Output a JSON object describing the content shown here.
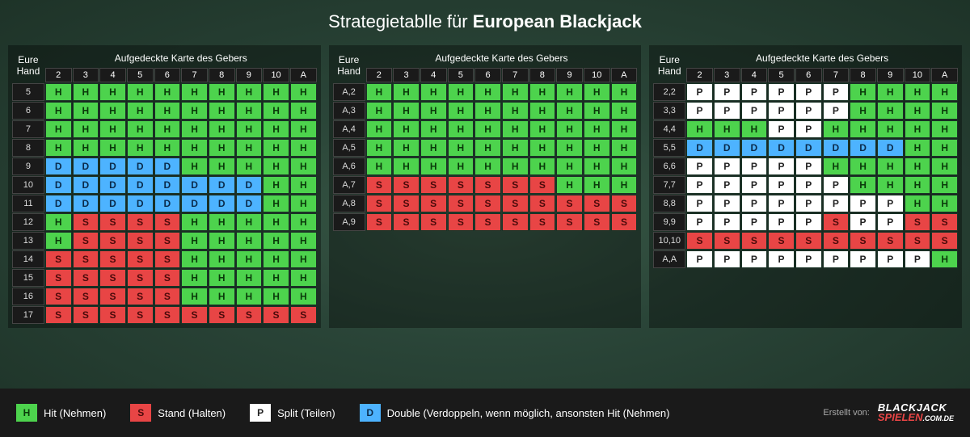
{
  "title_prefix": "Strategietablle für ",
  "title_bold": "European Blackjack",
  "hand_header_line1": "Eure",
  "hand_header_line2": "Hand",
  "dealer_header": "Aufgedeckte Karte des Gebers",
  "dealer_cols": [
    "2",
    "3",
    "4",
    "5",
    "6",
    "7",
    "8",
    "9",
    "10",
    "A"
  ],
  "colors": {
    "H": "#4dd34d",
    "S": "#e84545",
    "P": "#ffffff",
    "D": "#4db3ff",
    "panel_bg": "rgba(0,0,0,0.35)",
    "footer_bg": "#1a1a1a",
    "page_bg_center": "#3a5a47",
    "page_bg_edge": "#1e3328"
  },
  "tables": [
    {
      "rows": [
        {
          "hand": "5",
          "a": [
            "H",
            "H",
            "H",
            "H",
            "H",
            "H",
            "H",
            "H",
            "H",
            "H"
          ]
        },
        {
          "hand": "6",
          "a": [
            "H",
            "H",
            "H",
            "H",
            "H",
            "H",
            "H",
            "H",
            "H",
            "H"
          ]
        },
        {
          "hand": "7",
          "a": [
            "H",
            "H",
            "H",
            "H",
            "H",
            "H",
            "H",
            "H",
            "H",
            "H"
          ]
        },
        {
          "hand": "8",
          "a": [
            "H",
            "H",
            "H",
            "H",
            "H",
            "H",
            "H",
            "H",
            "H",
            "H"
          ]
        },
        {
          "hand": "9",
          "a": [
            "D",
            "D",
            "D",
            "D",
            "D",
            "H",
            "H",
            "H",
            "H",
            "H"
          ]
        },
        {
          "hand": "10",
          "a": [
            "D",
            "D",
            "D",
            "D",
            "D",
            "D",
            "D",
            "D",
            "H",
            "H"
          ]
        },
        {
          "hand": "11",
          "a": [
            "D",
            "D",
            "D",
            "D",
            "D",
            "D",
            "D",
            "D",
            "H",
            "H"
          ]
        },
        {
          "hand": "12",
          "a": [
            "H",
            "S",
            "S",
            "S",
            "S",
            "H",
            "H",
            "H",
            "H",
            "H"
          ]
        },
        {
          "hand": "13",
          "a": [
            "H",
            "S",
            "S",
            "S",
            "S",
            "H",
            "H",
            "H",
            "H",
            "H"
          ]
        },
        {
          "hand": "14",
          "a": [
            "S",
            "S",
            "S",
            "S",
            "S",
            "H",
            "H",
            "H",
            "H",
            "H"
          ]
        },
        {
          "hand": "15",
          "a": [
            "S",
            "S",
            "S",
            "S",
            "S",
            "H",
            "H",
            "H",
            "H",
            "H"
          ]
        },
        {
          "hand": "16",
          "a": [
            "S",
            "S",
            "S",
            "S",
            "S",
            "H",
            "H",
            "H",
            "H",
            "H"
          ]
        },
        {
          "hand": "17",
          "a": [
            "S",
            "S",
            "S",
            "S",
            "S",
            "S",
            "S",
            "S",
            "S",
            "S"
          ]
        }
      ]
    },
    {
      "rows": [
        {
          "hand": "A,2",
          "a": [
            "H",
            "H",
            "H",
            "H",
            "H",
            "H",
            "H",
            "H",
            "H",
            "H"
          ]
        },
        {
          "hand": "A,3",
          "a": [
            "H",
            "H",
            "H",
            "H",
            "H",
            "H",
            "H",
            "H",
            "H",
            "H"
          ]
        },
        {
          "hand": "A,4",
          "a": [
            "H",
            "H",
            "H",
            "H",
            "H",
            "H",
            "H",
            "H",
            "H",
            "H"
          ]
        },
        {
          "hand": "A,5",
          "a": [
            "H",
            "H",
            "H",
            "H",
            "H",
            "H",
            "H",
            "H",
            "H",
            "H"
          ]
        },
        {
          "hand": "A,6",
          "a": [
            "H",
            "H",
            "H",
            "H",
            "H",
            "H",
            "H",
            "H",
            "H",
            "H"
          ]
        },
        {
          "hand": "A,7",
          "a": [
            "S",
            "S",
            "S",
            "S",
            "S",
            "S",
            "S",
            "H",
            "H",
            "H"
          ]
        },
        {
          "hand": "A,8",
          "a": [
            "S",
            "S",
            "S",
            "S",
            "S",
            "S",
            "S",
            "S",
            "S",
            "S"
          ]
        },
        {
          "hand": "A,9",
          "a": [
            "S",
            "S",
            "S",
            "S",
            "S",
            "S",
            "S",
            "S",
            "S",
            "S"
          ]
        }
      ]
    },
    {
      "rows": [
        {
          "hand": "2,2",
          "a": [
            "P",
            "P",
            "P",
            "P",
            "P",
            "P",
            "H",
            "H",
            "H",
            "H"
          ]
        },
        {
          "hand": "3,3",
          "a": [
            "P",
            "P",
            "P",
            "P",
            "P",
            "P",
            "H",
            "H",
            "H",
            "H"
          ]
        },
        {
          "hand": "4,4",
          "a": [
            "H",
            "H",
            "H",
            "P",
            "P",
            "H",
            "H",
            "H",
            "H",
            "H"
          ]
        },
        {
          "hand": "5,5",
          "a": [
            "D",
            "D",
            "D",
            "D",
            "D",
            "D",
            "D",
            "D",
            "H",
            "H"
          ]
        },
        {
          "hand": "6,6",
          "a": [
            "P",
            "P",
            "P",
            "P",
            "P",
            "H",
            "H",
            "H",
            "H",
            "H"
          ]
        },
        {
          "hand": "7,7",
          "a": [
            "P",
            "P",
            "P",
            "P",
            "P",
            "P",
            "H",
            "H",
            "H",
            "H"
          ]
        },
        {
          "hand": "8,8",
          "a": [
            "P",
            "P",
            "P",
            "P",
            "P",
            "P",
            "P",
            "P",
            "H",
            "H"
          ]
        },
        {
          "hand": "9,9",
          "a": [
            "P",
            "P",
            "P",
            "P",
            "P",
            "S",
            "P",
            "P",
            "S",
            "S"
          ]
        },
        {
          "hand": "10,10",
          "a": [
            "S",
            "S",
            "S",
            "S",
            "S",
            "S",
            "S",
            "S",
            "S",
            "S"
          ]
        },
        {
          "hand": "A,A",
          "a": [
            "P",
            "P",
            "P",
            "P",
            "P",
            "P",
            "P",
            "P",
            "P",
            "H"
          ]
        }
      ]
    }
  ],
  "legend": [
    {
      "code": "H",
      "label": "Hit (Nehmen)"
    },
    {
      "code": "S",
      "label": "Stand (Halten)"
    },
    {
      "code": "P",
      "label": "Split (Teilen)"
    },
    {
      "code": "D",
      "label": "Double (Verdoppeln, wenn möglich, ansonsten Hit (Nehmen)"
    }
  ],
  "credit_label": "Erstellt von:",
  "logo_top": "BLACKJACK",
  "logo_mid_red": "SPIELEN",
  "logo_mid_white": ".COM.DE"
}
